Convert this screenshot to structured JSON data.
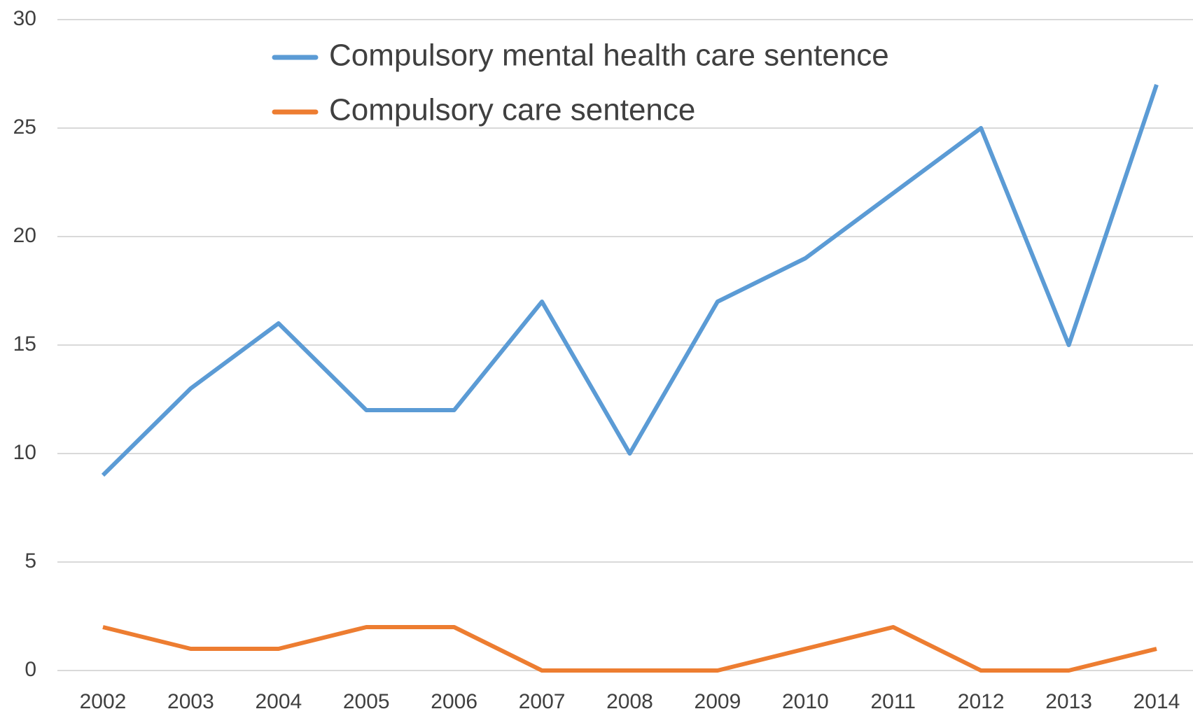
{
  "chart_data": {
    "type": "line",
    "categories": [
      "2002",
      "2003",
      "2004",
      "2005",
      "2006",
      "2007",
      "2008",
      "2009",
      "2010",
      "2011",
      "2012",
      "2013",
      "2014"
    ],
    "series": [
      {
        "name": "Compulsory mental health care sentence",
        "color": "#5b9bd5",
        "values": [
          9,
          13,
          16,
          12,
          12,
          17,
          10,
          17,
          19,
          22,
          25,
          15,
          27
        ]
      },
      {
        "name": "Compulsory care sentence",
        "color": "#ed7d31",
        "values": [
          2,
          1,
          1,
          2,
          2,
          0,
          0,
          0,
          1,
          2,
          0,
          0,
          1
        ]
      }
    ],
    "ylim": [
      0,
      30
    ],
    "yticks": [
      0,
      5,
      10,
      15,
      20,
      25,
      30
    ],
    "grid": true
  }
}
